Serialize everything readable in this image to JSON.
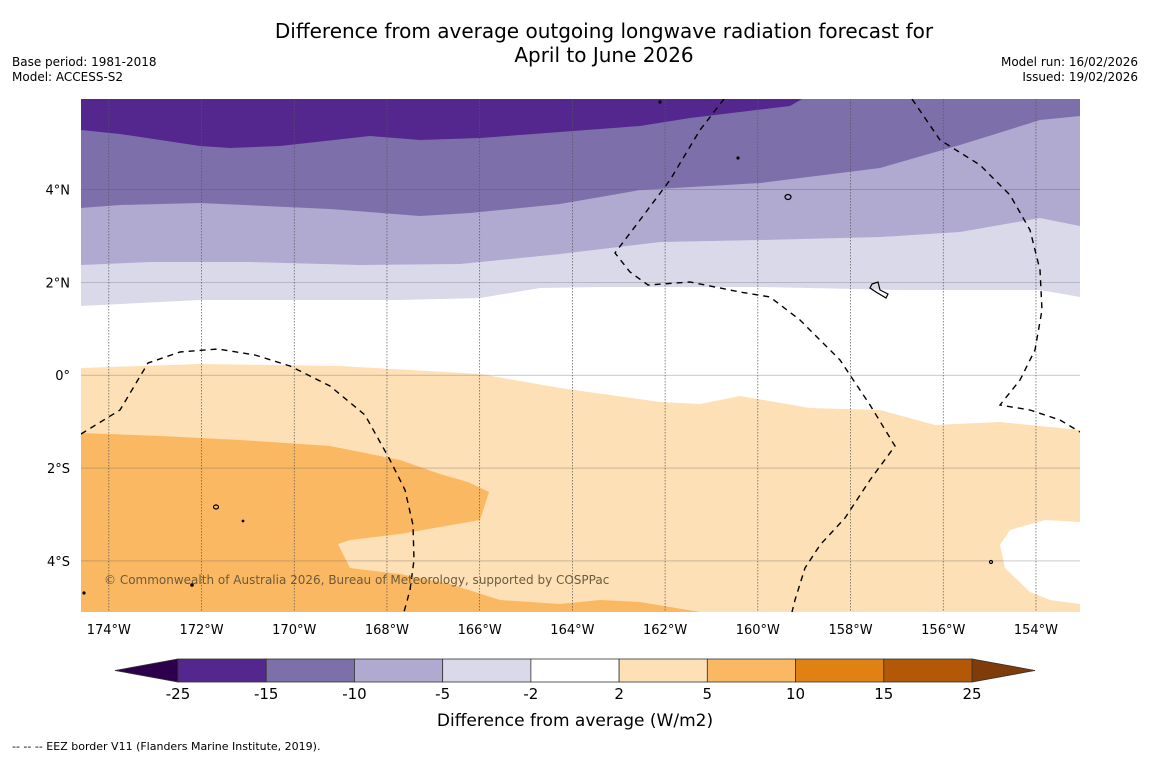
{
  "header": {
    "title_line1": "Difference from average outgoing longwave radiation forecast for",
    "title_line2": "April to June 2026",
    "base_period": "Base period: 1981-2018",
    "model": "Model: ACCESS-S2",
    "model_run": "Model run: 16/02/2026",
    "issued": "Issued: 19/02/2026"
  },
  "map": {
    "variable": "Difference from average outgoing longwave radiation",
    "extent": {
      "lon_min": -174.6,
      "lon_max": -153.05,
      "lat_min": -5.1,
      "lat_max": 5.95
    },
    "lon_ticks": [
      {
        "lon": -174,
        "label": "174°W"
      },
      {
        "lon": -172,
        "label": "172°W"
      },
      {
        "lon": -170,
        "label": "170°W"
      },
      {
        "lon": -168,
        "label": "168°W"
      },
      {
        "lon": -166,
        "label": "166°W"
      },
      {
        "lon": -164,
        "label": "164°W"
      },
      {
        "lon": -162,
        "label": "162°W"
      },
      {
        "lon": -160,
        "label": "160°W"
      },
      {
        "lon": -158,
        "label": "158°W"
      },
      {
        "lon": -156,
        "label": "156°W"
      },
      {
        "lon": -154,
        "label": "154°W"
      }
    ],
    "lat_ticks": [
      {
        "lat": 4,
        "label": "4°N"
      },
      {
        "lat": 2,
        "label": "2°N"
      },
      {
        "lat": 0,
        "label": "0°"
      },
      {
        "lat": -2,
        "label": "2°S"
      },
      {
        "lat": -4,
        "label": "4°S"
      }
    ],
    "copyright": "© Commonwealth of Australia 2026, Bureau of Meteorology, supported by COSPPac",
    "regions": [
      {
        "band": "-25 to -15",
        "color": "#54278f",
        "description": "northern edge, north of ~5°N"
      },
      {
        "band": "-15 to -10",
        "color": "#7d70aa",
        "description": "~3.5°N to 5°N"
      },
      {
        "band": "-10 to -5",
        "color": "#b0a9d0",
        "description": "~2.4°N to 3.6°N"
      },
      {
        "band": "-5 to -2",
        "color": "#d9d9ea",
        "description": "~1.6°N to 2.5°N"
      },
      {
        "band": "-2 to 2",
        "color": "#ffffff",
        "description": "equatorial strip ~0.2°N to 1.8°N, plus east near 0-1°S"
      },
      {
        "band": "2 to 5",
        "color": "#fde0b6",
        "description": "south of equator"
      },
      {
        "band": "5 to 10",
        "color": "#fbb862",
        "description": "southwest, 174°W-166°W below 1.3°S"
      }
    ]
  },
  "colorbar": {
    "title": "Difference from average (W/m2)",
    "ticks": [
      "-25",
      "-15",
      "-10",
      "-5",
      "-2",
      "2",
      "5",
      "10",
      "15",
      "25"
    ],
    "colors": [
      "#54278f",
      "#7d70aa",
      "#b0a9d0",
      "#d9d9ea",
      "#ffffff",
      "#fde0b6",
      "#fbb862",
      "#e08114",
      "#b35806"
    ],
    "under_color": "#2d004b",
    "over_color": "#7f3b08"
  },
  "footnote": "--  --  -- EEZ border V11 (Flanders Marine Institute, 2019)."
}
